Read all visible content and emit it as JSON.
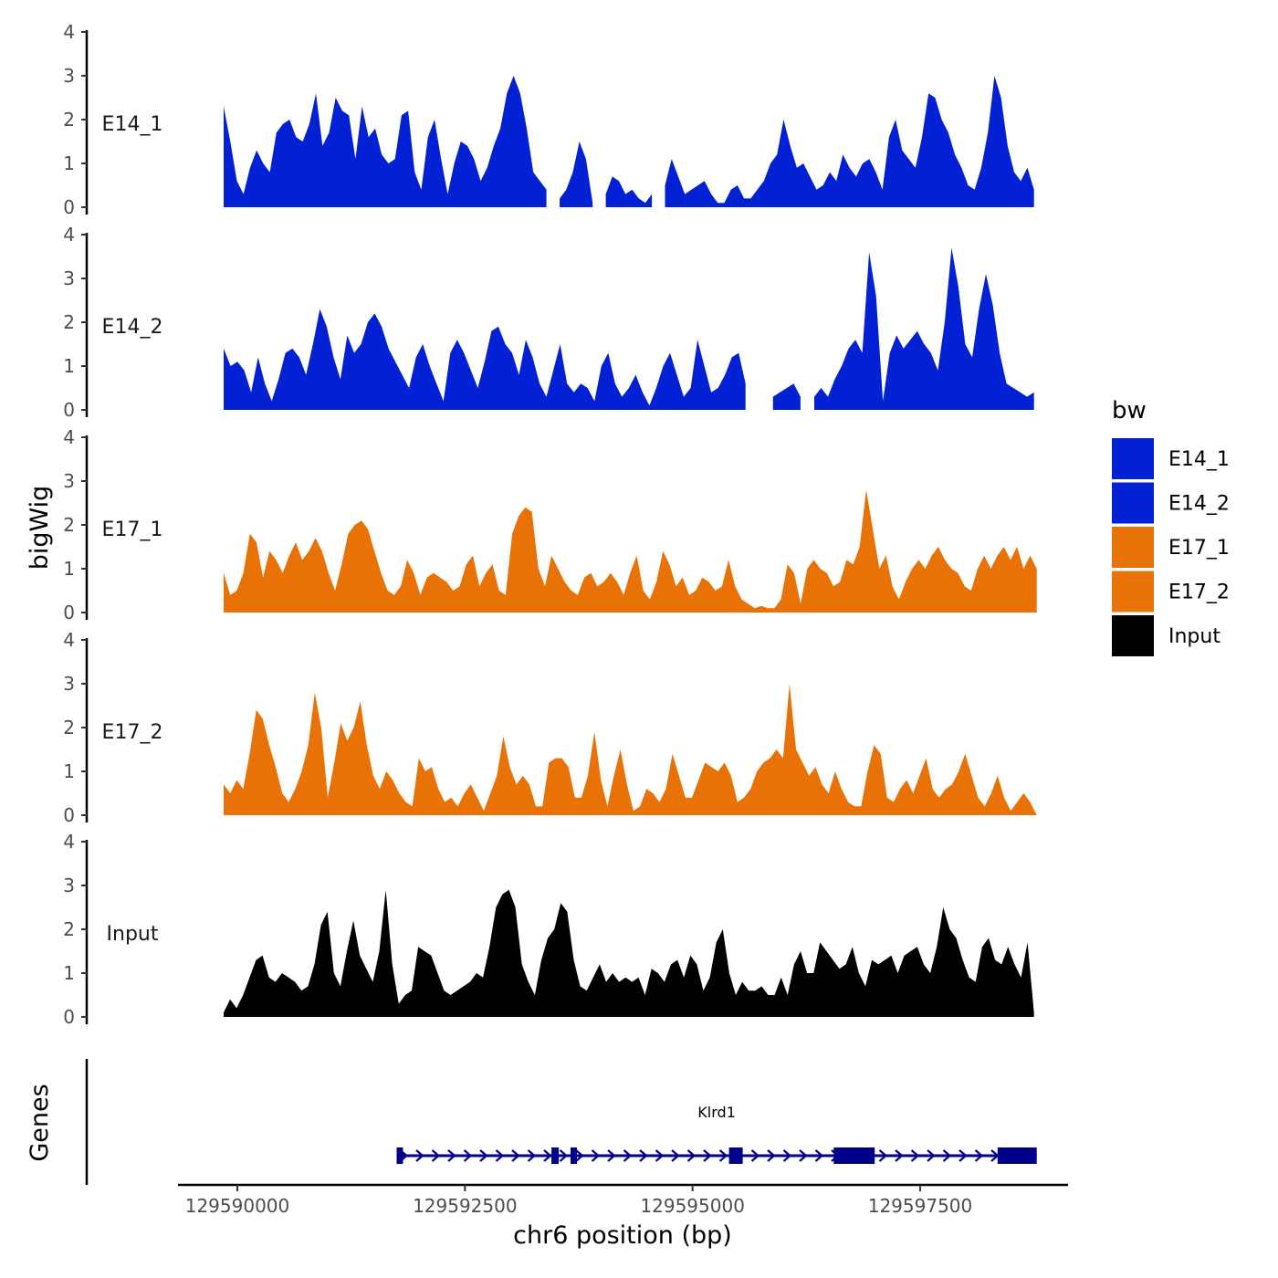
{
  "chart_data": {
    "type": "area",
    "xlabel": "chr6 position (bp)",
    "ylabel": "bigWig",
    "genes_label": "Genes",
    "xlim": [
      129589000,
      129599500
    ],
    "x_ticks": [
      {
        "value": 129590000,
        "label": "129590000"
      },
      {
        "value": 129592500,
        "label": "129592500"
      },
      {
        "value": 129595000,
        "label": "129595000"
      },
      {
        "value": 129597500,
        "label": "129597500"
      }
    ],
    "y_range": [
      0,
      4
    ],
    "y_ticks": [
      "0",
      "1",
      "2",
      "3",
      "4"
    ],
    "legend_title": "bw",
    "series": [
      {
        "name": "E14_1",
        "color": "#0321d4",
        "x_start": 129589850,
        "x_end": 129598750,
        "values": [
          2.3,
          1.5,
          0.6,
          0.3,
          0.9,
          1.3,
          1.0,
          0.8,
          1.7,
          1.9,
          2.0,
          1.6,
          1.5,
          1.9,
          2.6,
          1.4,
          1.7,
          2.5,
          2.2,
          2.1,
          1.1,
          2.3,
          1.6,
          1.8,
          1.2,
          1.0,
          1.1,
          2.1,
          2.2,
          0.8,
          0.4,
          1.6,
          2.0,
          1.1,
          0.3,
          1.0,
          1.5,
          1.4,
          1.1,
          0.6,
          0.9,
          1.4,
          1.8,
          2.6,
          3.0,
          2.6,
          1.8,
          0.8,
          0.6,
          0.4,
          null,
          0.2,
          0.4,
          0.8,
          1.5,
          1.1,
          0.1,
          null,
          0.3,
          0.7,
          0.6,
          0.3,
          0.4,
          0.2,
          0.1,
          0.3,
          null,
          0.5,
          1.1,
          0.7,
          0.3,
          0.4,
          0.5,
          0.6,
          0.3,
          0.1,
          0.1,
          0.4,
          0.5,
          0.2,
          0.2,
          0.4,
          0.6,
          1.0,
          1.2,
          2.0,
          1.4,
          0.9,
          1.0,
          0.7,
          0.4,
          0.5,
          0.8,
          0.6,
          1.2,
          0.9,
          0.7,
          1.0,
          1.1,
          0.8,
          0.4,
          1.6,
          2.0,
          1.3,
          1.1,
          0.9,
          1.6,
          2.6,
          2.5,
          2.0,
          1.7,
          1.2,
          0.9,
          0.5,
          0.4,
          0.9,
          1.7,
          3.0,
          2.5,
          1.4,
          0.8,
          0.6,
          0.9,
          0.4
        ]
      },
      {
        "name": "E14_2",
        "color": "#0321d4",
        "x_start": 129589850,
        "x_end": 129598750,
        "values": [
          1.4,
          1.0,
          1.1,
          0.9,
          0.4,
          1.2,
          0.6,
          0.2,
          0.7,
          1.3,
          1.4,
          1.2,
          0.8,
          1.5,
          2.3,
          1.9,
          1.2,
          0.7,
          1.7,
          1.3,
          1.5,
          2.0,
          2.2,
          1.9,
          1.4,
          1.1,
          0.8,
          0.5,
          1.2,
          1.5,
          1.0,
          0.6,
          0.2,
          1.3,
          1.6,
          1.3,
          0.9,
          0.5,
          1.1,
          1.8,
          1.9,
          1.5,
          1.3,
          0.8,
          1.6,
          1.2,
          0.6,
          0.3,
          0.9,
          1.5,
          0.6,
          0.4,
          0.6,
          0.5,
          0.2,
          1.0,
          1.3,
          0.6,
          0.3,
          0.5,
          0.8,
          0.4,
          0.1,
          0.5,
          1.0,
          1.3,
          0.8,
          0.3,
          0.5,
          1.6,
          1.0,
          0.4,
          0.5,
          0.8,
          1.2,
          1.3,
          0.6,
          null,
          null,
          null,
          0.3,
          0.4,
          0.5,
          0.6,
          0.3,
          null,
          0.3,
          0.5,
          0.3,
          0.7,
          1.0,
          1.4,
          1.6,
          1.3,
          3.6,
          2.6,
          0.2,
          1.3,
          1.7,
          1.4,
          1.6,
          1.8,
          1.5,
          1.3,
          0.9,
          2.0,
          3.7,
          2.8,
          1.5,
          1.2,
          2.3,
          3.1,
          2.4,
          1.3,
          0.6,
          0.5,
          0.4,
          0.3,
          0.4
        ]
      },
      {
        "name": "E17_1",
        "color": "#e87205",
        "x_start": 129589850,
        "x_end": 129598780,
        "values": [
          0.9,
          0.4,
          0.5,
          0.9,
          1.8,
          1.6,
          0.8,
          1.4,
          1.2,
          0.9,
          1.3,
          1.6,
          1.2,
          1.4,
          1.7,
          1.4,
          0.9,
          0.5,
          1.1,
          1.8,
          2.0,
          2.1,
          1.9,
          1.4,
          0.9,
          0.5,
          0.4,
          0.6,
          1.2,
          0.9,
          0.4,
          0.8,
          0.9,
          0.8,
          0.7,
          0.5,
          0.6,
          1.1,
          1.3,
          0.6,
          0.9,
          1.1,
          0.5,
          0.4,
          1.8,
          2.2,
          2.4,
          2.3,
          1.0,
          0.6,
          1.3,
          1.0,
          0.7,
          0.5,
          0.4,
          0.8,
          0.9,
          0.6,
          0.7,
          0.9,
          0.7,
          0.4,
          0.9,
          1.3,
          0.5,
          0.3,
          0.7,
          1.4,
          1.1,
          0.6,
          0.8,
          0.4,
          0.5,
          0.8,
          0.7,
          0.5,
          0.6,
          1.2,
          0.6,
          0.3,
          0.2,
          0.1,
          0.15,
          0.1,
          0.1,
          0.3,
          1.1,
          0.9,
          0.2,
          1.0,
          1.2,
          1.0,
          0.9,
          0.6,
          0.7,
          1.2,
          1.1,
          1.5,
          2.8,
          1.9,
          1.0,
          1.3,
          0.6,
          0.3,
          0.7,
          1.0,
          1.2,
          1.0,
          1.3,
          1.5,
          1.2,
          1.0,
          0.9,
          0.6,
          0.5,
          1.0,
          1.3,
          1.0,
          1.3,
          1.5,
          1.2,
          1.5,
          1.0,
          1.3,
          1.0
        ]
      },
      {
        "name": "E17_2",
        "color": "#e87205",
        "x_start": 129589850,
        "x_end": 129598780,
        "values": [
          0.7,
          0.5,
          0.8,
          0.6,
          1.4,
          2.4,
          2.2,
          1.6,
          1.1,
          0.5,
          0.3,
          0.6,
          1.0,
          1.6,
          2.8,
          2.0,
          0.4,
          1.2,
          2.1,
          1.7,
          2.0,
          2.6,
          1.6,
          0.9,
          0.6,
          1.0,
          0.8,
          0.5,
          0.3,
          0.2,
          1.3,
          1.0,
          1.1,
          0.6,
          0.3,
          0.4,
          0.2,
          0.5,
          0.7,
          0.4,
          0.1,
          0.5,
          0.9,
          1.8,
          1.1,
          0.7,
          0.9,
          0.7,
          0.2,
          0.2,
          1.2,
          1.3,
          1.3,
          1.1,
          0.4,
          0.4,
          0.9,
          1.9,
          0.8,
          0.2,
          0.9,
          1.5,
          0.7,
          0.1,
          0.2,
          0.6,
          0.5,
          0.3,
          0.6,
          1.4,
          0.9,
          0.4,
          0.4,
          0.8,
          1.2,
          1.1,
          1.0,
          1.2,
          0.9,
          0.3,
          0.4,
          0.6,
          1.0,
          1.2,
          1.3,
          1.5,
          1.3,
          3.0,
          1.5,
          1.2,
          0.9,
          1.1,
          0.7,
          0.5,
          1.0,
          0.6,
          0.3,
          0.2,
          0.2,
          1.0,
          1.6,
          1.4,
          0.4,
          0.3,
          0.6,
          0.8,
          0.5,
          0.9,
          1.3,
          0.6,
          0.4,
          0.6,
          0.7,
          1.0,
          1.4,
          0.9,
          0.4,
          0.2,
          0.5,
          0.9,
          0.4,
          0.1,
          0.3,
          0.5,
          0.3,
          0.0
        ]
      },
      {
        "name": "Input",
        "color": "#000000",
        "x_start": 129589850,
        "x_end": 129598750,
        "values": [
          0.1,
          0.4,
          0.2,
          0.5,
          0.9,
          1.3,
          1.4,
          0.9,
          0.8,
          1.0,
          0.9,
          0.8,
          0.6,
          0.7,
          1.2,
          2.1,
          2.4,
          1.0,
          0.7,
          1.5,
          2.2,
          1.4,
          1.1,
          0.8,
          1.5,
          2.9,
          1.2,
          0.3,
          0.5,
          0.6,
          1.6,
          1.5,
          1.4,
          1.0,
          0.6,
          0.5,
          0.6,
          0.7,
          0.8,
          1.0,
          0.9,
          1.6,
          2.5,
          2.8,
          2.9,
          2.5,
          1.2,
          0.8,
          0.5,
          1.3,
          1.8,
          2.0,
          2.6,
          2.4,
          1.3,
          0.7,
          0.6,
          0.9,
          1.2,
          0.8,
          1.0,
          0.8,
          0.9,
          0.8,
          0.9,
          0.5,
          1.1,
          1.0,
          0.8,
          1.2,
          1.3,
          0.9,
          1.4,
          1.2,
          0.6,
          0.9,
          1.7,
          2.0,
          1.0,
          0.5,
          0.8,
          0.6,
          0.6,
          0.7,
          0.5,
          0.5,
          0.9,
          0.5,
          1.2,
          1.5,
          1.0,
          1.0,
          1.7,
          1.5,
          1.3,
          1.1,
          1.2,
          1.6,
          1.0,
          0.7,
          1.3,
          1.2,
          1.3,
          1.4,
          1.0,
          1.4,
          1.5,
          1.6,
          1.2,
          1.0,
          1.6,
          2.5,
          2.0,
          1.8,
          1.3,
          0.9,
          0.8,
          1.6,
          1.8,
          1.3,
          1.2,
          1.6,
          1.2,
          0.9,
          1.7,
          0.1
        ]
      }
    ],
    "gene": {
      "name": "Klrd1",
      "strand": "+",
      "start": 129591750,
      "end": 129598780,
      "exons": [
        [
          129591750,
          129591820
        ],
        [
          129593450,
          129593530
        ],
        [
          129593660,
          129593730
        ],
        [
          129595400,
          129595550
        ],
        [
          129596550,
          129597000
        ],
        [
          129598350,
          129598780
        ]
      ]
    }
  }
}
